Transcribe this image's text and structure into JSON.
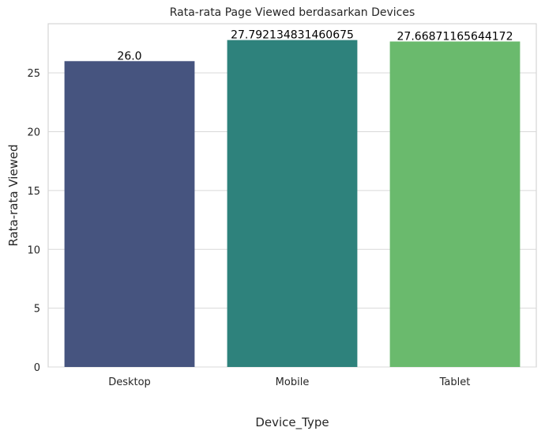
{
  "chart_data": {
    "type": "bar",
    "title": "Rata-rata Page Viewed berdasarkan Devices",
    "xlabel": "Device_Type",
    "ylabel": "Rata-rata Viewed",
    "categories": [
      "Desktop",
      "Mobile",
      "Tablet"
    ],
    "values": [
      26.0,
      27.792134831460675,
      27.66871165644172
    ],
    "data_labels": [
      "26.0",
      "27.792134831460675",
      "27.66871165644172"
    ],
    "colors": [
      "#46547f",
      "#2e827c",
      "#6aba6d"
    ],
    "ylim": [
      0,
      29.18
    ],
    "yticks": [
      0,
      5,
      10,
      15,
      20,
      25
    ],
    "grid": "horizontal",
    "legend": "none"
  }
}
